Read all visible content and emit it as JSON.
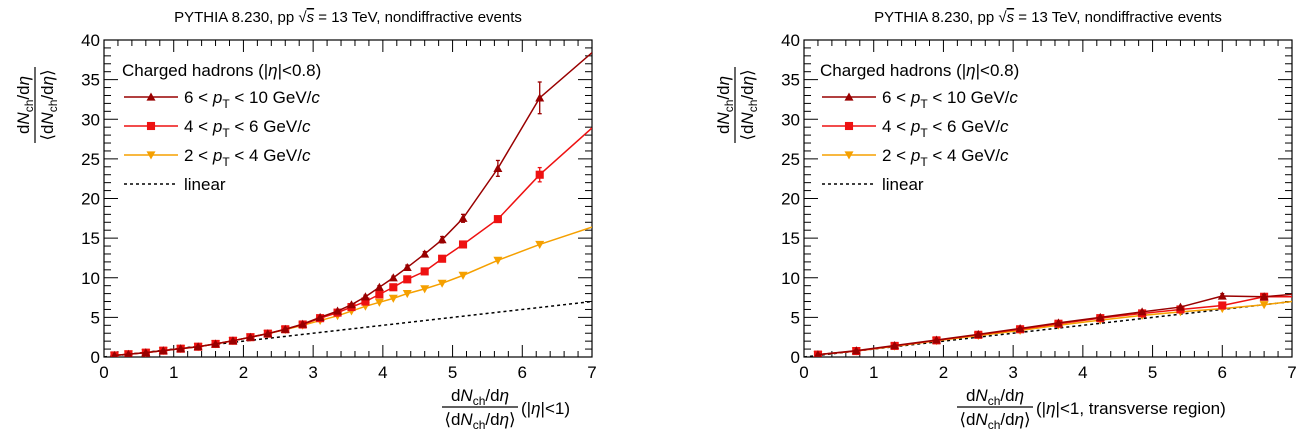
{
  "chart_data": [
    {
      "type": "line",
      "title": "PYTHIA 8.230, pp √s = 13 TeV, nondiffractive events",
      "title_parts": {
        "pre": "PYTHIA 8.230, pp ",
        "sqrt": "√",
        "s": "s",
        "post": " = 13 TeV, nondiffractive events"
      },
      "ylabel": {
        "num": "dN_ch/dη",
        "den": "⟨dN_ch/dη⟩"
      },
      "xlabel": {
        "num": "dN_ch/dη",
        "den": "⟨dN_ch/dη⟩",
        "suffix": "(|η|<1)"
      },
      "xlim": [
        0,
        7
      ],
      "ylim": [
        0,
        40
      ],
      "xticks": [
        0,
        1,
        2,
        3,
        4,
        5,
        6,
        7
      ],
      "yticks": [
        0,
        5,
        10,
        15,
        20,
        25,
        30,
        35,
        40
      ],
      "legend_title": "Charged hadrons (|η|<0.8)",
      "grid": false,
      "series": [
        {
          "name": "6 < pT < 10 GeV/c",
          "label": {
            "pre": "6 < ",
            "var": "p",
            "sub": "T",
            "post": " < 10 GeV/",
            "unit": "c"
          },
          "color": "#990000",
          "marker": "triangle-up",
          "x": [
            0.15,
            0.35,
            0.6,
            0.85,
            1.1,
            1.35,
            1.6,
            1.85,
            2.1,
            2.35,
            2.6,
            2.85,
            3.1,
            3.35,
            3.55,
            3.75,
            3.95,
            4.15,
            4.35,
            4.6,
            4.85,
            5.15,
            5.65,
            6.25
          ],
          "y": [
            0.2,
            0.35,
            0.55,
            0.8,
            1.05,
            1.3,
            1.65,
            2.05,
            2.5,
            2.95,
            3.5,
            4.15,
            5.0,
            5.8,
            6.6,
            7.6,
            8.8,
            10.0,
            11.3,
            13.0,
            14.8,
            17.5,
            23.8,
            32.7
          ],
          "err": [
            0,
            0,
            0,
            0,
            0,
            0,
            0,
            0,
            0,
            0,
            0,
            0,
            0,
            0,
            0,
            0.2,
            0.2,
            0.2,
            0.3,
            0.3,
            0.4,
            0.5,
            1.0,
            2.0
          ],
          "curve_end": 38.4
        },
        {
          "name": "4 < pT < 6 GeV/c",
          "label": {
            "pre": "4 < ",
            "var": "p",
            "sub": "T",
            "post": " < 6 GeV/",
            "unit": "c"
          },
          "color": "#ee1111",
          "marker": "square",
          "x": [
            0.15,
            0.35,
            0.6,
            0.85,
            1.1,
            1.35,
            1.6,
            1.85,
            2.1,
            2.35,
            2.6,
            2.85,
            3.1,
            3.35,
            3.55,
            3.75,
            3.95,
            4.15,
            4.35,
            4.6,
            4.85,
            5.15,
            5.65,
            6.25
          ],
          "y": [
            0.2,
            0.35,
            0.55,
            0.8,
            1.05,
            1.3,
            1.65,
            2.05,
            2.5,
            2.95,
            3.5,
            4.1,
            4.9,
            5.6,
            6.3,
            7.0,
            7.9,
            8.8,
            9.8,
            10.8,
            12.4,
            14.2,
            17.4,
            23.0
          ],
          "err": [
            0,
            0,
            0,
            0,
            0,
            0,
            0,
            0,
            0,
            0,
            0,
            0,
            0,
            0,
            0,
            0,
            0,
            0,
            0,
            0,
            0,
            0.2,
            0.3,
            0.9
          ],
          "curve_end": 28.9
        },
        {
          "name": "2 < pT < 4 GeV/c",
          "label": {
            "pre": "2 < ",
            "var": "p",
            "sub": "T",
            "post": " < 4 GeV/",
            "unit": "c"
          },
          "color": "#f5a000",
          "marker": "triangle-down",
          "x": [
            0.15,
            0.35,
            0.6,
            0.85,
            1.1,
            1.35,
            1.6,
            1.85,
            2.1,
            2.35,
            2.6,
            2.85,
            3.1,
            3.35,
            3.55,
            3.75,
            3.95,
            4.15,
            4.35,
            4.6,
            4.85,
            5.15,
            5.65,
            6.25
          ],
          "y": [
            0.2,
            0.35,
            0.55,
            0.8,
            1.05,
            1.3,
            1.65,
            2.05,
            2.5,
            2.95,
            3.45,
            4.0,
            4.6,
            5.2,
            5.8,
            6.4,
            6.9,
            7.4,
            8.0,
            8.6,
            9.3,
            10.3,
            12.2,
            14.2
          ],
          "err": [
            0,
            0,
            0,
            0,
            0,
            0,
            0,
            0,
            0,
            0,
            0,
            0,
            0,
            0,
            0,
            0,
            0,
            0,
            0,
            0,
            0,
            0,
            0,
            0
          ],
          "curve_end": 16.4
        },
        {
          "name": "linear",
          "label": {
            "pre": "linear",
            "var": "",
            "sub": "",
            "post": "",
            "unit": ""
          },
          "color": "#000000",
          "marker": "none",
          "dashed": true,
          "x": [
            0,
            7
          ],
          "y": [
            0,
            7
          ]
        }
      ]
    },
    {
      "type": "line",
      "title": "PYTHIA 8.230, pp √s = 13 TeV, nondiffractive events",
      "title_parts": {
        "pre": "PYTHIA 8.230, pp ",
        "sqrt": "√",
        "s": "s",
        "post": " = 13 TeV, nondiffractive events"
      },
      "ylabel": {
        "num": "dN_ch/dη",
        "den": "⟨dN_ch/dη⟩"
      },
      "xlabel": {
        "num": "dN_ch/dη",
        "den": "⟨dN_ch/dη⟩",
        "suffix": "(|η|<1, transverse region)"
      },
      "xlim": [
        0,
        7
      ],
      "ylim": [
        0,
        40
      ],
      "xticks": [
        0,
        1,
        2,
        3,
        4,
        5,
        6,
        7
      ],
      "yticks": [
        0,
        5,
        10,
        15,
        20,
        25,
        30,
        35,
        40
      ],
      "legend_title": "Charged hadrons (|η|<0.8)",
      "grid": false,
      "series": [
        {
          "name": "6 < pT < 10 GeV/c",
          "label": {
            "pre": "6 < ",
            "var": "p",
            "sub": "T",
            "post": " < 10 GeV/",
            "unit": "c"
          },
          "color": "#990000",
          "marker": "triangle-up",
          "x": [
            0.2,
            0.75,
            1.3,
            1.9,
            2.5,
            3.1,
            3.65,
            4.25,
            4.85,
            5.4,
            6.0,
            6.6
          ],
          "y": [
            0.3,
            0.8,
            1.45,
            2.15,
            2.85,
            3.6,
            4.3,
            5.0,
            5.7,
            6.3,
            7.7,
            7.6
          ],
          "err": [
            0,
            0,
            0,
            0,
            0,
            0,
            0,
            0,
            0,
            0,
            0.3,
            0.3
          ],
          "curve_end": 7.9
        },
        {
          "name": "4 < pT < 6 GeV/c",
          "label": {
            "pre": "4 < ",
            "var": "p",
            "sub": "T",
            "post": " < 6 GeV/",
            "unit": "c"
          },
          "color": "#ee1111",
          "marker": "square",
          "x": [
            0.2,
            0.75,
            1.3,
            1.9,
            2.5,
            3.1,
            3.65,
            4.25,
            4.85,
            5.4,
            6.0,
            6.6
          ],
          "y": [
            0.3,
            0.75,
            1.4,
            2.1,
            2.8,
            3.5,
            4.2,
            4.9,
            5.5,
            6.0,
            6.5,
            7.6
          ],
          "err": [
            0,
            0,
            0,
            0,
            0,
            0,
            0,
            0,
            0,
            0,
            0,
            0
          ],
          "curve_end": 7.6
        },
        {
          "name": "2 < pT < 4 GeV/c",
          "label": {
            "pre": "2 < ",
            "var": "p",
            "sub": "T",
            "post": " < 4 GeV/",
            "unit": "c"
          },
          "color": "#f5a000",
          "marker": "triangle-down",
          "x": [
            0.2,
            0.75,
            1.3,
            1.9,
            2.5,
            3.1,
            3.65,
            4.25,
            4.85,
            5.4,
            6.0,
            6.6
          ],
          "y": [
            0.3,
            0.75,
            1.35,
            2.05,
            2.7,
            3.35,
            4.0,
            4.65,
            5.25,
            5.7,
            6.1,
            6.6
          ],
          "err": [
            0,
            0,
            0,
            0,
            0,
            0,
            0,
            0,
            0,
            0,
            0,
            0
          ],
          "curve_end": 7.0
        },
        {
          "name": "linear",
          "label": {
            "pre": "linear",
            "var": "",
            "sub": "",
            "post": "",
            "unit": ""
          },
          "color": "#000000",
          "marker": "none",
          "dashed": true,
          "x": [
            0,
            7
          ],
          "y": [
            0,
            7
          ]
        }
      ]
    }
  ]
}
